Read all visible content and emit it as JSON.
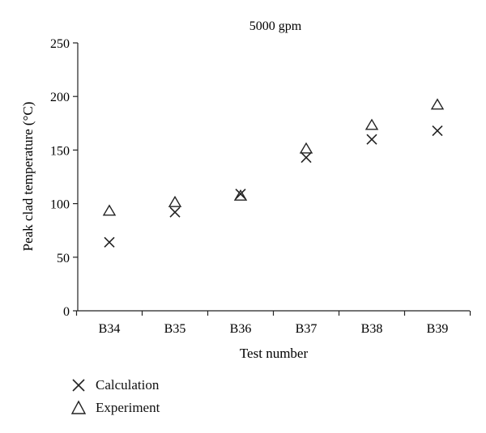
{
  "chart_data": {
    "type": "scatter",
    "title": "5000 gpm",
    "xlabel": "Test number",
    "ylabel": "Peak clad temperature (°C)",
    "categories": [
      "B34",
      "B35",
      "B36",
      "B37",
      "B38",
      "B39"
    ],
    "ylim": [
      0,
      250
    ],
    "yticks": [
      0,
      50,
      100,
      150,
      200,
      250
    ],
    "grid": false,
    "legend_position": "bottom-left",
    "series": [
      {
        "name": "Calculation",
        "marker": "x",
        "values": [
          64,
          92,
          109,
          143,
          160,
          168
        ]
      },
      {
        "name": "Experiment",
        "marker": "triangle",
        "values": [
          93,
          101,
          107,
          151,
          173,
          192
        ]
      }
    ]
  },
  "colors": {
    "axis": "#222222",
    "marker": "#222222"
  }
}
